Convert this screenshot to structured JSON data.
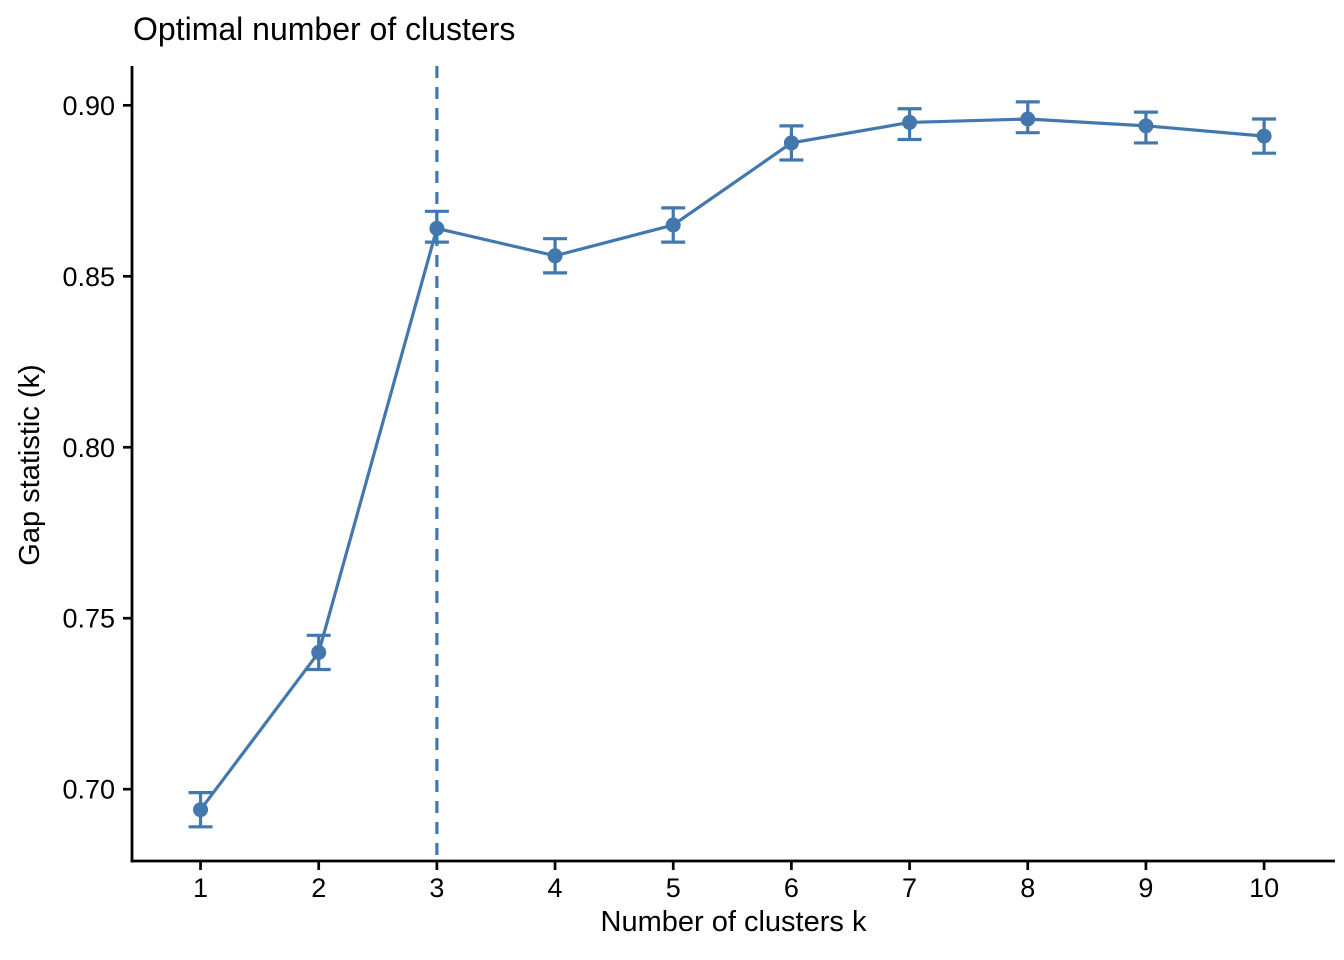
{
  "background_color": "#FFFFFF",
  "text_color": "#000000",
  "accent_color": "#4278AE",
  "chart_data": {
    "type": "line",
    "title": "Optimal number of clusters",
    "xlabel": "Number of clusters k",
    "ylabel": "Gap statistic (k)",
    "x": [
      1,
      2,
      3,
      4,
      5,
      6,
      7,
      8,
      9,
      10
    ],
    "x_tick_labels": [
      "1",
      "2",
      "3",
      "4",
      "5",
      "6",
      "7",
      "8",
      "9",
      "10"
    ],
    "y_ticks": [
      0.7,
      0.75,
      0.8,
      0.85,
      0.9
    ],
    "y_tick_labels": [
      "0.70",
      "0.75",
      "0.80",
      "0.85",
      "0.90"
    ],
    "xlim": [
      0.42,
      10.6
    ],
    "ylim": [
      0.679,
      0.9115
    ],
    "grid": false,
    "legend": "none",
    "marker": "circle",
    "error_bars": true,
    "vline": {
      "x": 3,
      "style": "dashed"
    },
    "series": [
      {
        "name": "Gap statistic",
        "values": [
          0.694,
          0.74,
          0.864,
          0.856,
          0.865,
          0.889,
          0.895,
          0.896,
          0.894,
          0.891
        ],
        "error_low": [
          0.689,
          0.735,
          0.86,
          0.851,
          0.86,
          0.884,
          0.89,
          0.892,
          0.889,
          0.886
        ],
        "error_high": [
          0.699,
          0.745,
          0.869,
          0.861,
          0.87,
          0.894,
          0.899,
          0.901,
          0.898,
          0.896
        ]
      }
    ]
  }
}
